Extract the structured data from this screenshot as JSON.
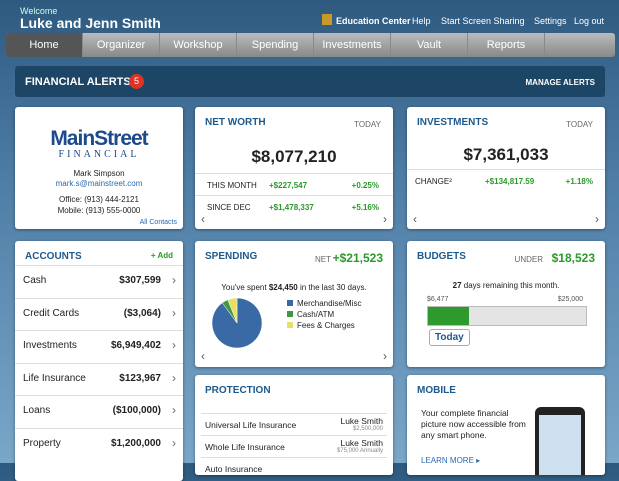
{
  "header": {
    "welcome": "Welcome",
    "name": "Luke and Jenn Smith",
    "links": [
      "Education Center",
      "Help",
      "Start Screen Sharing",
      "Settings",
      "Log out"
    ]
  },
  "nav": [
    "Home",
    "Organizer",
    "Workshop",
    "Spending",
    "Investments",
    "Vault",
    "Reports"
  ],
  "alerts": {
    "title": "FINANCIAL ALERTS",
    "count": "5",
    "action": "MANAGE ALERTS"
  },
  "advisor": {
    "logo_top": "MainStreet",
    "logo_bottom": "FINANCIAL",
    "name": "Mark Simpson",
    "email": "mark.s@mainstreet.com",
    "office": "Office: (913) 444-2121",
    "mobile": "Mobile: (913) 555-0000",
    "link": "All Contacts"
  },
  "net_worth": {
    "title": "NET WORTH",
    "date": "TODAY",
    "total": "$8,077,210",
    "rows": [
      [
        "THIS MONTH",
        "+$227,547",
        "+0.25%"
      ],
      [
        "SINCE DEC",
        "+$1,478,337",
        "+5.16%"
      ]
    ]
  },
  "investments": {
    "title": "INVESTMENTS",
    "date": "TODAY",
    "total": "$7,361,033",
    "rows": [
      [
        "CHANGE²",
        "+$134,817.59",
        "+1.18%"
      ]
    ]
  },
  "accounts": {
    "title": "ACCOUNTS",
    "add": "+ Add",
    "rows": [
      [
        "Cash",
        "$307,599"
      ],
      [
        "Credit Cards",
        "($3,064)"
      ],
      [
        "Investments",
        "$6,949,402"
      ],
      [
        "Life Insurance",
        "$123,967"
      ],
      [
        "Loans",
        "($100,000)"
      ],
      [
        "Property",
        "$1,200,000"
      ]
    ]
  },
  "spending": {
    "title": "SPENDING",
    "net_label": "NET",
    "net": "+$21,523",
    "summary_pre": "You've spent",
    "amount": "$24,450",
    "summary_post": "in the last 30 days.",
    "legend": [
      "Merchandise/Misc",
      "Cash/ATM",
      "Fees & Charges"
    ],
    "colors": [
      "#3a6aa6",
      "#3f9a3f",
      "#e8e066"
    ],
    "values": [
      90,
      4,
      6
    ]
  },
  "budgets": {
    "title": "BUDGETS",
    "under_label": "UNDER",
    "under": "$18,523",
    "days": "27",
    "remaining": "days remaining this month.",
    "spent": {
      "value": 6477,
      "label": "$6,477"
    },
    "limit": {
      "value": 25000,
      "label": "$25,000"
    },
    "today": "Today"
  },
  "protection": {
    "title": "PROTECTION",
    "rows": [
      [
        "Universal Life Insurance",
        "Luke Smith",
        "$2,500,000"
      ],
      [
        "Whole Life Insurance",
        "Luke Smith",
        "$75,000 Annually"
      ],
      [
        "Auto Insurance",
        "",
        ""
      ]
    ]
  },
  "mobile": {
    "title": "MOBILE",
    "text": "Your complete financial picture now accessible from any smart phone.",
    "link": "LEARN MORE ▸"
  }
}
